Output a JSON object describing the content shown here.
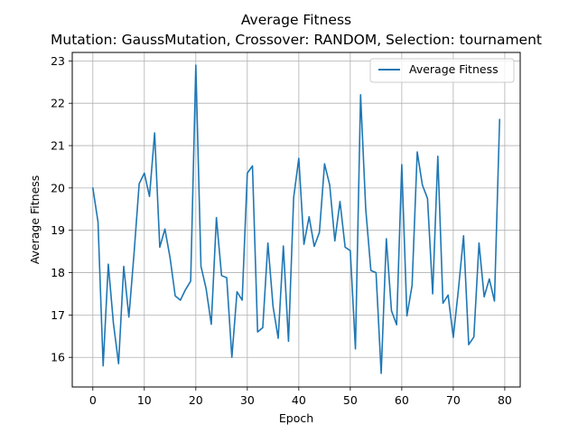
{
  "chart_data": {
    "type": "line",
    "title": "Average Fitness",
    "subtitle": "Mutation: GaussMutation, Crossover: RANDOM, Selection: tournament",
    "xlabel": "Epoch",
    "ylabel": "Average Fitness",
    "xlim": [
      -4,
      83
    ],
    "ylim": [
      15.3,
      23.2
    ],
    "xticks": [
      0,
      10,
      20,
      30,
      40,
      50,
      60,
      70,
      80
    ],
    "yticks": [
      16,
      17,
      18,
      19,
      20,
      21,
      22,
      23
    ],
    "grid": true,
    "legend_position": "top-right",
    "series": [
      {
        "name": "Average Fitness",
        "color": "#1f77b4",
        "x": [
          0,
          1,
          2,
          3,
          4,
          5,
          6,
          7,
          8,
          9,
          10,
          11,
          12,
          13,
          14,
          15,
          16,
          17,
          18,
          19,
          20,
          21,
          22,
          23,
          24,
          25,
          26,
          27,
          28,
          29,
          30,
          31,
          32,
          33,
          34,
          35,
          36,
          37,
          38,
          39,
          40,
          41,
          42,
          43,
          44,
          45,
          46,
          47,
          48,
          49,
          50,
          51,
          52,
          53,
          54,
          55,
          56,
          57,
          58,
          59,
          60,
          61,
          62,
          63,
          64,
          65,
          66,
          67,
          68,
          69,
          70,
          71,
          72,
          73,
          74,
          75,
          76,
          77,
          78,
          79
        ],
        "y": [
          20.0,
          19.2,
          15.8,
          18.2,
          16.8,
          15.85,
          18.15,
          16.95,
          18.45,
          20.1,
          20.35,
          19.8,
          21.3,
          18.6,
          19.03,
          18.35,
          17.45,
          17.35,
          17.6,
          17.8,
          22.9,
          18.15,
          17.62,
          16.78,
          19.3,
          17.93,
          17.88,
          16.0,
          17.55,
          17.35,
          20.35,
          20.52,
          16.6,
          16.7,
          18.7,
          17.2,
          16.45,
          18.63,
          16.38,
          19.77,
          20.7,
          18.67,
          19.32,
          18.62,
          18.95,
          20.57,
          20.07,
          18.75,
          19.68,
          18.6,
          18.52,
          16.2,
          22.2,
          19.5,
          18.05,
          18.0,
          15.62,
          18.8,
          17.1,
          16.77,
          20.55,
          16.98,
          17.7,
          20.85,
          20.07,
          19.75,
          17.5,
          20.75,
          17.28,
          17.47,
          16.47,
          17.6,
          18.87,
          16.3,
          16.48,
          18.7,
          17.43,
          17.85,
          17.33,
          21.62
        ]
      }
    ]
  }
}
